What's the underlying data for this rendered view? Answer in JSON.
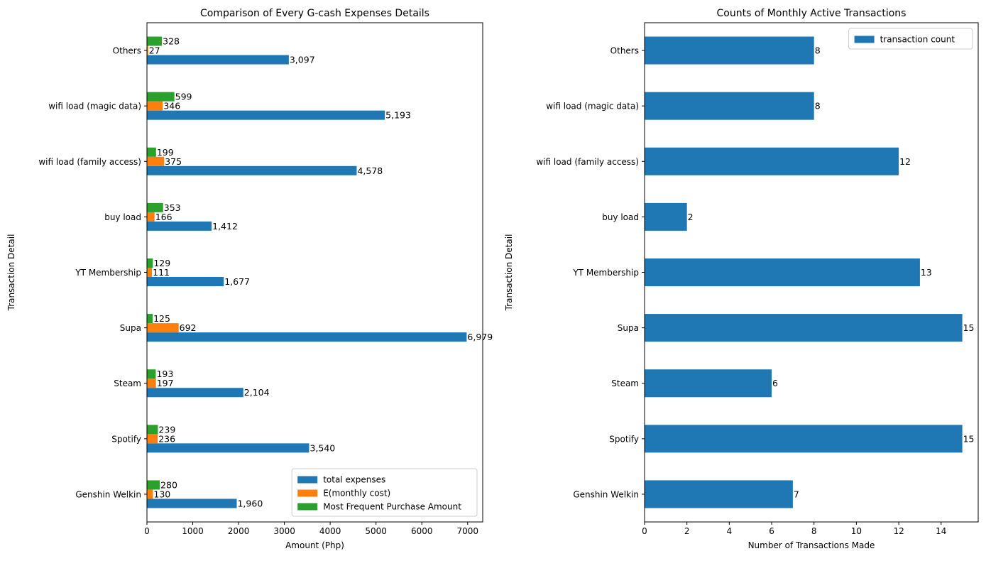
{
  "chart_data": [
    {
      "type": "bar",
      "orientation": "horizontal",
      "title": "Comparison of Every G-cash Expenses Details",
      "xlabel": "Amount (Php)",
      "ylabel": "Transaction Detail",
      "xlim": [
        0,
        7329
      ],
      "xticks": [
        0,
        1000,
        2000,
        3000,
        4000,
        5000,
        6000,
        7000
      ],
      "categories": [
        "Genshin Welkin",
        "Spotify",
        "Steam",
        "Supa",
        "YT Membership",
        "buy load",
        "wifi load (family access)",
        "wifi load (magic data)",
        "Others"
      ],
      "series": [
        {
          "name": "total expenses",
          "color": "#1f77b4",
          "values": [
            1960,
            3540,
            2104,
            6979,
            1677,
            1412,
            4578,
            5193,
            3097
          ],
          "labels": [
            "1,960",
            "3,540",
            "2,104",
            "6,979",
            "1,677",
            "1,412",
            "4,578",
            "5,193",
            "3,097"
          ]
        },
        {
          "name": "E(monthly cost)",
          "color": "#ff7f0e",
          "values": [
            130,
            236,
            197,
            692,
            111,
            166,
            375,
            346,
            27
          ],
          "labels": [
            "130",
            "236",
            "197",
            "692",
            "111",
            "166",
            "375",
            "346",
            "27"
          ]
        },
        {
          "name": "Most Frequent Purchase Amount",
          "color": "#2ca02c",
          "values": [
            280,
            239,
            193,
            125,
            129,
            353,
            199,
            599,
            328
          ],
          "labels": [
            "280",
            "239",
            "193",
            "125",
            "129",
            "353",
            "199",
            "599",
            "328"
          ]
        }
      ],
      "legend": "lower-right",
      "grid": false
    },
    {
      "type": "bar",
      "orientation": "horizontal",
      "title": "Counts of Monthly Active Transactions",
      "xlabel": "Number of Transactions Made",
      "ylabel": "Transaction Detail",
      "xlim": [
        0,
        15.75
      ],
      "xticks": [
        0,
        2,
        4,
        6,
        8,
        10,
        12,
        14
      ],
      "categories": [
        "Genshin Welkin",
        "Spotify",
        "Steam",
        "Supa",
        "YT Membership",
        "buy load",
        "wifi load (family access)",
        "wifi load (magic data)",
        "Others"
      ],
      "series": [
        {
          "name": "transaction count",
          "color": "#1f77b4",
          "values": [
            7,
            15,
            6,
            15,
            13,
            2,
            12,
            8,
            8
          ],
          "labels": [
            "7",
            "15",
            "6",
            "15",
            "13",
            "2",
            "12",
            "8",
            "8"
          ]
        }
      ],
      "legend": "upper-right",
      "grid": false
    }
  ]
}
